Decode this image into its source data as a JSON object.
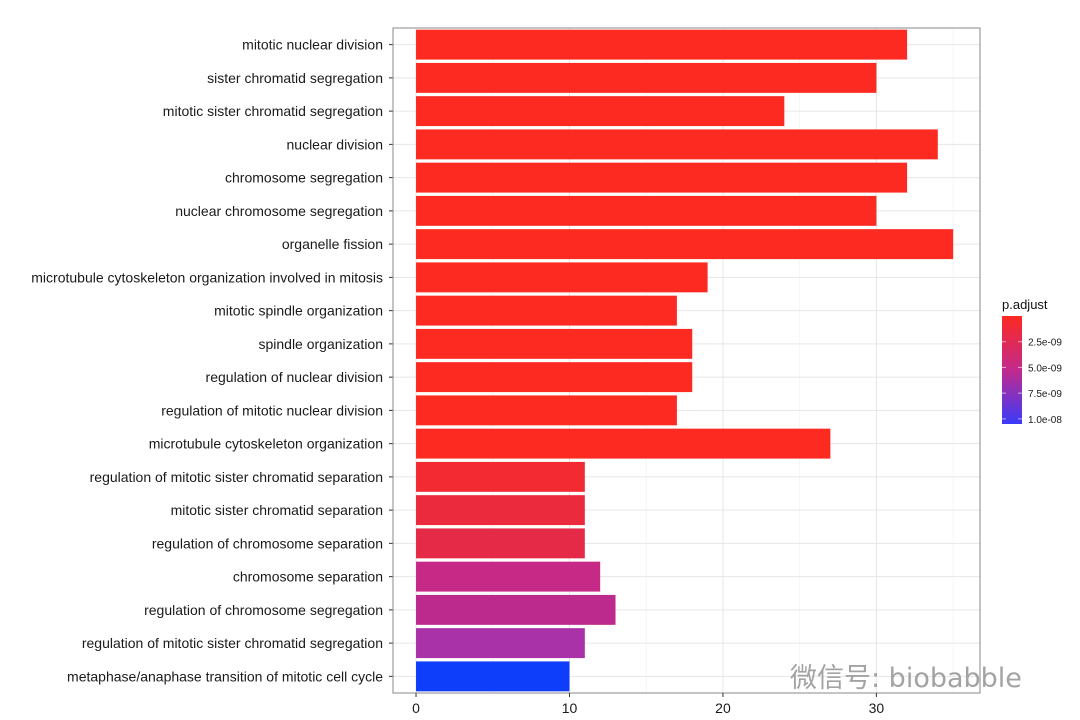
{
  "chart_data": {
    "type": "bar",
    "orientation": "horizontal",
    "categories": [
      "mitotic nuclear division",
      "sister chromatid segregation",
      "mitotic sister chromatid segregation",
      "nuclear division",
      "chromosome segregation",
      "nuclear chromosome segregation",
      "organelle fission",
      "microtubule cytoskeleton organization involved in mitosis",
      "mitotic spindle organization",
      "spindle organization",
      "regulation of nuclear division",
      "regulation of mitotic nuclear division",
      "microtubule cytoskeleton organization",
      "regulation of mitotic sister chromatid separation",
      "mitotic sister chromatid separation",
      "regulation of chromosome separation",
      "chromosome separation",
      "regulation of chromosome segregation",
      "regulation of mitotic sister chromatid segregation",
      "metaphase/anaphase transition of mitotic cell cycle"
    ],
    "values": [
      32,
      30,
      24,
      34,
      32,
      30,
      35,
      19,
      17,
      18,
      18,
      17,
      27,
      11,
      11,
      11,
      12,
      13,
      11,
      10
    ],
    "p_adjust_approx": [
      0,
      0,
      0,
      0,
      0,
      0,
      0,
      0,
      0,
      0,
      0,
      0,
      0,
      6e-10,
      1e-09,
      1.6e-09,
      4.5e-09,
      5e-09,
      6.5e-09,
      1e-08
    ],
    "bar_colors": [
      "#FC2A21",
      "#FC2A21",
      "#FC2A21",
      "#FC2A21",
      "#FC2A21",
      "#FC2A21",
      "#FC2A21",
      "#FC2A21",
      "#FC2A21",
      "#FC2A21",
      "#FC2A21",
      "#FC2A21",
      "#FC2A21",
      "#F42A33",
      "#EC2A3E",
      "#E42A46",
      "#C62A86",
      "#BC2A8E",
      "#A932A8",
      "#0F3EFA"
    ],
    "xlim": [
      -1.5,
      36.75
    ],
    "xticks": [
      0,
      10,
      20,
      30
    ],
    "xlabel": "",
    "ylabel": "",
    "grid": true,
    "legend": {
      "title": "p.adjust",
      "placement": "right",
      "ticks": [
        "2.5e-09",
        "5.0e-09",
        "7.5e-09",
        "1.0e-08"
      ],
      "tick_values": [
        2.5e-09,
        5e-09,
        7.5e-09,
        1e-08
      ],
      "range": [
        0,
        1.05e-08
      ],
      "low_color": "#FC2A21",
      "high_color": "#3A3AFA"
    }
  },
  "watermark": "微信号: biobabble"
}
